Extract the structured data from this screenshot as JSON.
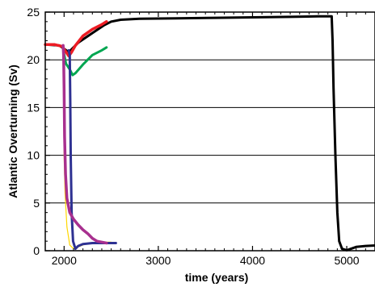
{
  "chart_data": {
    "type": "line",
    "title": "",
    "xlabel": "time (years)",
    "ylabel": "Atlantic Overturning (Sv)",
    "xlim": [
      1800,
      5300
    ],
    "ylim": [
      0,
      25
    ],
    "x_ticks": [
      2000,
      3000,
      4000,
      5000
    ],
    "y_ticks": [
      0,
      5,
      10,
      15,
      20,
      25
    ],
    "x_tick_labels": [
      "2000",
      "3000",
      "4000",
      "5000"
    ],
    "y_tick_labels": [
      "0",
      "5",
      "10",
      "15",
      "20",
      "25"
    ],
    "grid": "horizontal",
    "legend": "none",
    "series": [
      {
        "color": "#000000",
        "width": 3,
        "points": [
          [
            1800,
            21.6
          ],
          [
            1950,
            21.5
          ],
          [
            2050,
            20.8
          ],
          [
            2150,
            21.8
          ],
          [
            2300,
            22.8
          ],
          [
            2420,
            23.6
          ],
          [
            2500,
            24.0
          ],
          [
            2600,
            24.2
          ],
          [
            2800,
            24.3
          ],
          [
            3200,
            24.35
          ],
          [
            3600,
            24.4
          ],
          [
            4000,
            24.45
          ],
          [
            4400,
            24.5
          ],
          [
            4700,
            24.55
          ],
          [
            4840,
            24.55
          ],
          [
            4850,
            22
          ],
          [
            4860,
            17
          ],
          [
            4880,
            10
          ],
          [
            4900,
            4
          ],
          [
            4920,
            1
          ],
          [
            4950,
            0.2
          ],
          [
            5000,
            0.05
          ],
          [
            5100,
            0.4
          ],
          [
            5200,
            0.5
          ],
          [
            5300,
            0.55
          ]
        ]
      },
      {
        "color": "#00a651",
        "width": 3,
        "points": [
          [
            1990,
            21.5
          ],
          [
            2000,
            20.6
          ],
          [
            2020,
            19.6
          ],
          [
            2060,
            19.0
          ],
          [
            2090,
            18.4
          ],
          [
            2120,
            18.6
          ],
          [
            2200,
            19.5
          ],
          [
            2300,
            20.5
          ],
          [
            2400,
            21.0
          ],
          [
            2450,
            21.3
          ]
        ]
      },
      {
        "color": "#ed1c24",
        "width": 3.5,
        "points": [
          [
            1800,
            21.6
          ],
          [
            1900,
            21.6
          ],
          [
            1980,
            21.4
          ],
          [
            2050,
            20.4
          ],
          [
            2080,
            20.8
          ],
          [
            2120,
            21.5
          ],
          [
            2200,
            22.5
          ],
          [
            2300,
            23.2
          ],
          [
            2400,
            23.7
          ],
          [
            2450,
            24.0
          ]
        ]
      },
      {
        "color": "#ffd700",
        "width": 1.2,
        "points": [
          [
            1990,
            21.4
          ],
          [
            1995,
            15
          ],
          [
            2000,
            10
          ],
          [
            2010,
            6
          ],
          [
            2030,
            2.5
          ],
          [
            2060,
            0.6
          ],
          [
            2100,
            0.2
          ],
          [
            2150,
            0.4
          ],
          [
            2250,
            0.8
          ],
          [
            2350,
            0.9
          ],
          [
            2450,
            0.9
          ],
          [
            2500,
            0.9
          ]
        ]
      },
      {
        "color": "#2e3192",
        "width": 3,
        "points": [
          [
            2050,
            21.0
          ],
          [
            2060,
            20.5
          ],
          [
            2065,
            16
          ],
          [
            2070,
            10
          ],
          [
            2080,
            4
          ],
          [
            2095,
            1.0
          ],
          [
            2120,
            0.2
          ],
          [
            2150,
            0.5
          ],
          [
            2200,
            0.7
          ],
          [
            2300,
            0.8
          ],
          [
            2400,
            0.8
          ],
          [
            2500,
            0.8
          ],
          [
            2550,
            0.8
          ]
        ]
      },
      {
        "color": "#a8308f",
        "width": 3.5,
        "points": [
          [
            1990,
            21.5
          ],
          [
            1995,
            20.5
          ],
          [
            2000,
            17
          ],
          [
            2005,
            12
          ],
          [
            2015,
            8
          ],
          [
            2030,
            5.5
          ],
          [
            2060,
            4.0
          ],
          [
            2100,
            3.3
          ],
          [
            2150,
            2.7
          ],
          [
            2200,
            2.2
          ],
          [
            2250,
            1.8
          ],
          [
            2300,
            1.3
          ],
          [
            2350,
            1.0
          ],
          [
            2400,
            0.9
          ],
          [
            2450,
            0.8
          ]
        ]
      }
    ]
  }
}
